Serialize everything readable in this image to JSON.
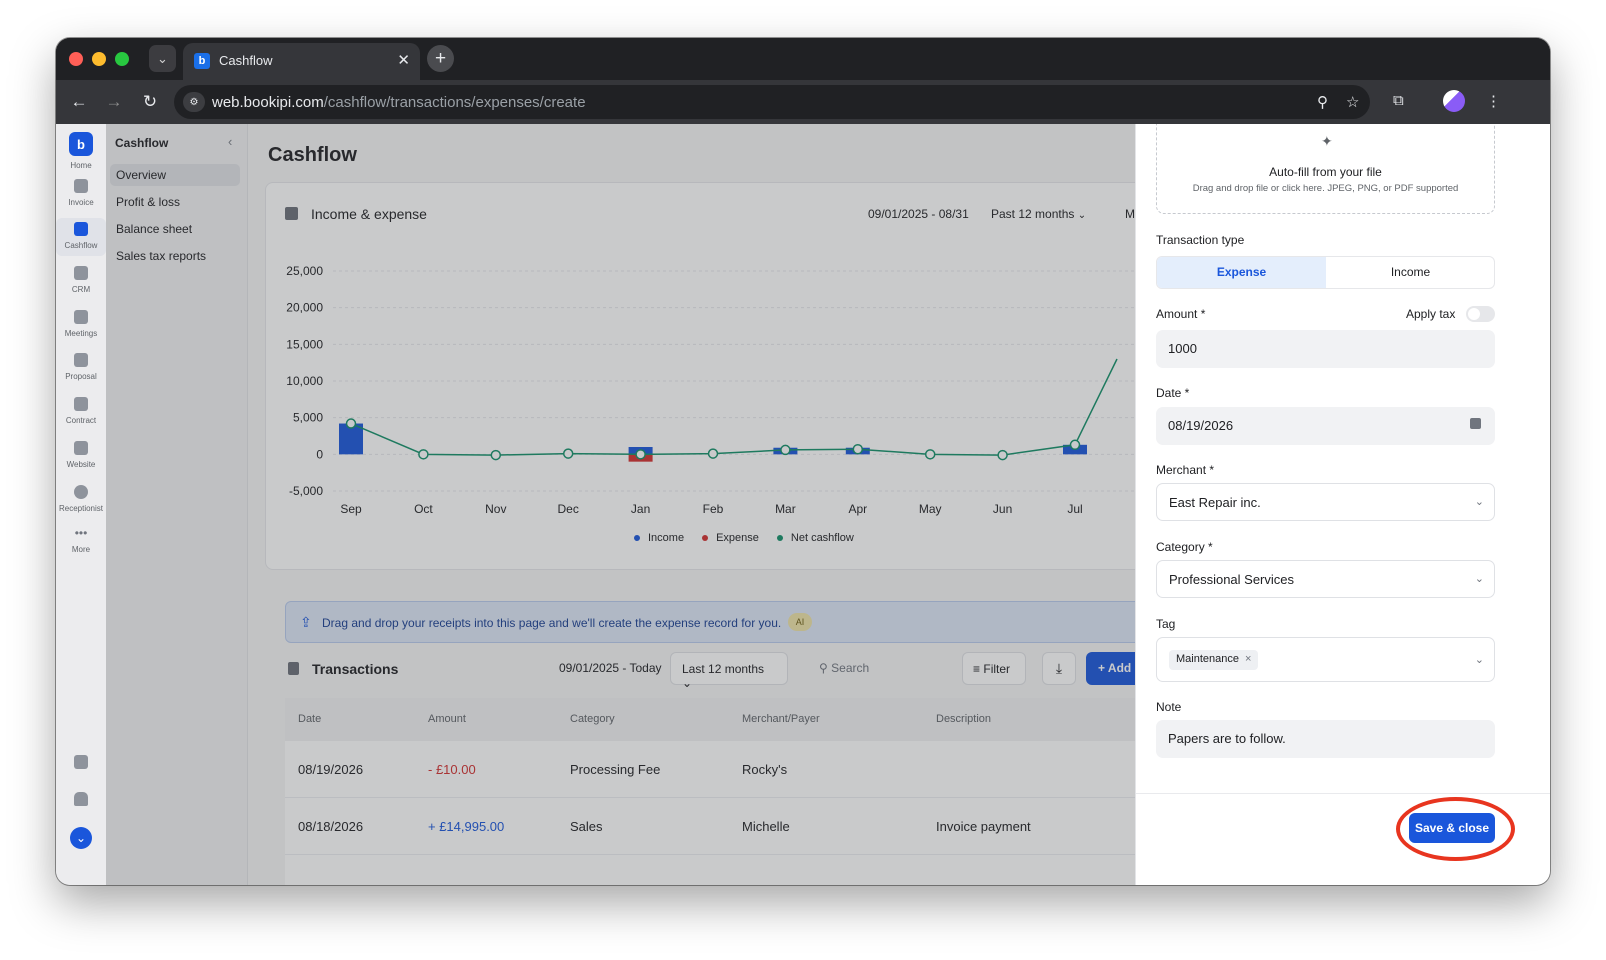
{
  "browser": {
    "tab_title": "Cashflow",
    "url_host": "web.bookipi.com",
    "url_path": "/cashflow/transactions/expenses/create"
  },
  "rail": {
    "items": [
      {
        "label": "Home",
        "icon": "home-logo-icon"
      },
      {
        "label": "Invoice",
        "icon": "invoice-icon"
      },
      {
        "label": "Cashflow",
        "icon": "cashflow-icon"
      },
      {
        "label": "CRM",
        "icon": "crm-icon"
      },
      {
        "label": "Meetings",
        "icon": "meetings-icon"
      },
      {
        "label": "Proposal",
        "icon": "proposal-icon"
      },
      {
        "label": "Contract",
        "icon": "contract-icon"
      },
      {
        "label": "Website",
        "icon": "website-icon"
      },
      {
        "label": "Receptionist",
        "icon": "receptionist-icon"
      },
      {
        "label": "More",
        "icon": "more-icon"
      }
    ]
  },
  "subnav": {
    "title": "Cashflow",
    "items": [
      "Overview",
      "Profit & loss",
      "Balance sheet",
      "Sales tax reports"
    ]
  },
  "main": {
    "title": "Cashflow",
    "chart_card": {
      "title": "Income & expense",
      "date_range": "09/01/2025 - 08/31",
      "period": "Past 12 months",
      "cut_label": "M"
    }
  },
  "chart_data": {
    "type": "bar",
    "categories": [
      "Sep",
      "Oct",
      "Nov",
      "Dec",
      "Jan",
      "Feb",
      "Mar",
      "Apr",
      "May",
      "Jun",
      "Jul"
    ],
    "y_ticks": [
      "25,000",
      "20,000",
      "15,000",
      "10,000",
      "5,000",
      "0",
      "-5,000"
    ],
    "ylim": [
      -5000,
      25000
    ],
    "series": [
      {
        "name": "Income",
        "color": "#1a56db",
        "values": [
          4200,
          0,
          0,
          0,
          1000,
          0,
          900,
          900,
          0,
          0,
          1300
        ]
      },
      {
        "name": "Expense",
        "color": "#d32f2f",
        "values": [
          0,
          0,
          0,
          0,
          -1000,
          0,
          0,
          0,
          0,
          0,
          0
        ]
      },
      {
        "name": "Net cashflow",
        "color": "#13906a",
        "values": [
          4200,
          0,
          -100,
          100,
          0,
          100,
          600,
          700,
          0,
          -100,
          1300
        ],
        "extends_to": 13000
      }
    ],
    "legend": "bottom-center",
    "grid": true
  },
  "banner": {
    "text": "Drag and drop your receipts into this page and we'll create the expense record for you.",
    "badge": "AI"
  },
  "transactions": {
    "title": "Transactions",
    "date_range": "09/01/2025 - Today",
    "period": "Last 12 months",
    "search_placeholder": "Search",
    "filter_label": "Filter",
    "add_label": "Add",
    "columns": [
      "Date",
      "Amount",
      "Category",
      "Merchant/Payer",
      "Description"
    ],
    "rows": [
      {
        "date": "08/19/2026",
        "amount": "- £10.00",
        "category": "Processing Fee",
        "merchant": "Rocky's",
        "description": ""
      },
      {
        "date": "08/18/2026",
        "amount": "+ £14,995.00",
        "category": "Sales",
        "merchant": "Michelle",
        "description": "Invoice payment"
      }
    ]
  },
  "panel": {
    "dropzone_title": "Auto-fill from your file",
    "dropzone_sub": "Drag and drop file or click here. JPEG, PNG, or PDF supported",
    "transaction_type_label": "Transaction type",
    "type_expense": "Expense",
    "type_income": "Income",
    "amount_label": "Amount *",
    "apply_tax_label": "Apply tax",
    "amount_value": "1000",
    "date_label": "Date *",
    "date_value": "08/19/2026",
    "merchant_label": "Merchant *",
    "merchant_value": "East Repair inc.",
    "category_label": "Category *",
    "category_value": "Professional Services",
    "tag_label": "Tag",
    "tag_value": "Maintenance",
    "note_label": "Note",
    "note_value": "Papers are to follow.",
    "save_label": "Save & close"
  }
}
